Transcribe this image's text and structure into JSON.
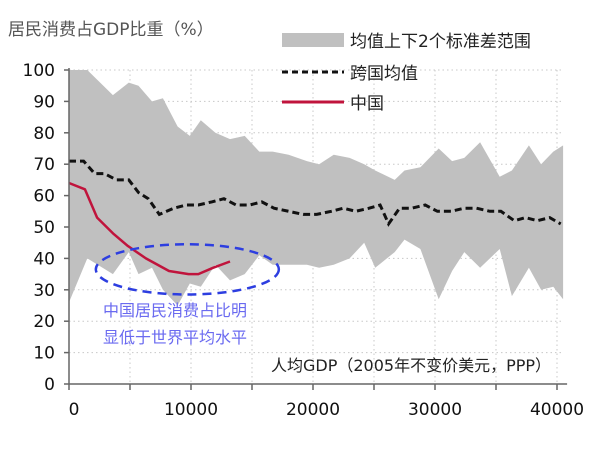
{
  "chart_data": {
    "type": "line",
    "title": "居民消费占GDP比重（%）",
    "xlabel": "人均GDP（2005年不变价美元，PPP）",
    "ylabel": "",
    "xlim": [
      0,
      40500
    ],
    "ylim": [
      0,
      100
    ],
    "x_ticks": [
      0,
      10000,
      20000,
      30000,
      40000
    ],
    "x_minor_ticks": [
      5000,
      15000,
      25000,
      35000
    ],
    "x_tick_labels": [
      "0",
      "10000",
      "20000",
      "30000",
      "40000"
    ],
    "y_ticks": [
      0,
      10,
      20,
      30,
      40,
      50,
      60,
      70,
      80,
      90,
      100
    ],
    "y_tick_labels": [
      "0",
      "10",
      "20",
      "30",
      "40",
      "50",
      "60",
      "70",
      "80",
      "90",
      "100"
    ],
    "grid": true,
    "legend_position": "top-right",
    "legend": [
      {
        "label": "均值上下2个标准差范围",
        "kind": "band",
        "color": "#c0c0c0"
      },
      {
        "label": "跨国均值",
        "kind": "dashed-line",
        "color": "#111111"
      },
      {
        "label": "中国",
        "kind": "line",
        "color": "#c0143c"
      }
    ],
    "series": [
      {
        "name": "均值上下2个标准差范围",
        "type": "band",
        "color": "#c0c0c0",
        "x": [
          0,
          1500,
          3600,
          4900,
          5700,
          6800,
          7700,
          8900,
          9900,
          10800,
          12000,
          13200,
          14400,
          15600,
          16700,
          18000,
          19500,
          20500,
          21700,
          23000,
          24200,
          25100,
          26700,
          27500,
          28800,
          30300,
          31400,
          32400,
          33700,
          35300,
          36300,
          37700,
          38700,
          39700,
          40500
        ],
        "upper": [
          100,
          100,
          92,
          96,
          95,
          90,
          91,
          82,
          79,
          84,
          80,
          78,
          79,
          74,
          74,
          73,
          71,
          70,
          73,
          72,
          70,
          68,
          65,
          68,
          69,
          75,
          71,
          72,
          77,
          66,
          68,
          76,
          70,
          74,
          76
        ],
        "lower": [
          26,
          40,
          35,
          42,
          35,
          37,
          30,
          25,
          32,
          31,
          38,
          33,
          35,
          41,
          38,
          38,
          38,
          37,
          38,
          40,
          45,
          37,
          42,
          46,
          43,
          27,
          36,
          42,
          37,
          43,
          28,
          37,
          30,
          31,
          27
        ]
      },
      {
        "name": "跨国均值",
        "type": "dashed-line",
        "color": "#111111",
        "x": [
          0,
          1200,
          2100,
          2900,
          3900,
          4900,
          5700,
          6500,
          7400,
          8600,
          9600,
          10600,
          11700,
          12700,
          13700,
          14800,
          15800,
          16800,
          18000,
          19200,
          20300,
          21500,
          22500,
          23500,
          24600,
          25500,
          26200,
          27100,
          28100,
          29200,
          30200,
          31300,
          32400,
          33400,
          34500,
          35400,
          36500,
          37400,
          38400,
          39400,
          40300
        ],
        "y": [
          71,
          71,
          67,
          67,
          65,
          65,
          61,
          59,
          54,
          56,
          57,
          57,
          58,
          59,
          57,
          57,
          58,
          56,
          55,
          54,
          54,
          55,
          56,
          55,
          56,
          57,
          51,
          56,
          56,
          57,
          55,
          55,
          56,
          56,
          55,
          55,
          52,
          53,
          52,
          53,
          51
        ]
      },
      {
        "name": "中国",
        "type": "line",
        "color": "#c0143c",
        "x": [
          0,
          1300,
          2300,
          3600,
          4800,
          6300,
          8200,
          9800,
          10600,
          11800,
          13200
        ],
        "y": [
          64,
          62,
          53,
          48,
          44,
          40,
          36,
          35,
          35,
          37,
          39
        ]
      }
    ],
    "annotations": [
      {
        "text_lines": [
          "中国居民消费占比明",
          "显低于世界平均水平"
        ],
        "color": "#6a6af0",
        "shape": "dashed-ellipse",
        "ellipse_color": "#2d3ee0",
        "ellipse_center": [
          9700,
          36.5
        ],
        "ellipse_radius": [
          7500,
          8
        ]
      }
    ]
  }
}
